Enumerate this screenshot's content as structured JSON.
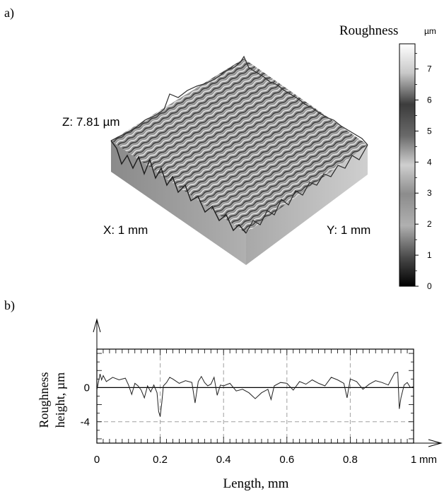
{
  "panel_a": {
    "label": "a)",
    "colorbar_title": "Roughness",
    "colorbar_unit": "µm",
    "colorbar_ticks": [
      "0",
      "1",
      "2",
      "3",
      "4",
      "5",
      "6",
      "7"
    ],
    "colorbar_range": [
      0,
      7.81
    ],
    "z_label": "Z: 7.81 µm",
    "x_label": "X: 1 mm",
    "y_label": "Y: 1 mm"
  },
  "panel_b": {
    "label": "b)",
    "xlabel": "Length, mm",
    "ylabel_line1": "Roughness",
    "ylabel_line2": "height, µm",
    "x_unit": "mm"
  },
  "chart_data": [
    {
      "type": "heatmap",
      "title": "",
      "description_values": "3D surface topography, height scale 0 to 7.81 µm over 1 mm × 1 mm",
      "xlabel": "X: 1 mm",
      "ylabel": "Y: 1 mm",
      "zlabel": "Z: 7.81 µm",
      "zlim": [
        0,
        7.81
      ],
      "colorbar_ticks": [
        0,
        1,
        2,
        3,
        4,
        5,
        6,
        7
      ]
    },
    {
      "type": "line",
      "title": "",
      "xlabel": "Length, mm",
      "ylabel": "Roughness height, µm",
      "xlim": [
        0,
        1
      ],
      "ylim": [
        -6.5,
        4.5
      ],
      "x_ticks": [
        "0",
        "0.2",
        "0.4",
        "0.6",
        "0.8",
        "1"
      ],
      "y_ticks": [
        "0",
        "-4"
      ],
      "grid": true,
      "series": [
        {
          "x": [
            0,
            0.01,
            0.015,
            0.02,
            0.03,
            0.05,
            0.07,
            0.09,
            0.1,
            0.11,
            0.12,
            0.13,
            0.14,
            0.15,
            0.16,
            0.17,
            0.18,
            0.19,
            0.195,
            0.2,
            0.205,
            0.21,
            0.22,
            0.23,
            0.24,
            0.26,
            0.28,
            0.3,
            0.31,
            0.32,
            0.33,
            0.34,
            0.35,
            0.36,
            0.37,
            0.38,
            0.39,
            0.4,
            0.42,
            0.44,
            0.46,
            0.48,
            0.5,
            0.52,
            0.54,
            0.55,
            0.56,
            0.58,
            0.6,
            0.62,
            0.64,
            0.66,
            0.68,
            0.7,
            0.72,
            0.74,
            0.76,
            0.78,
            0.79,
            0.8,
            0.82,
            0.84,
            0.86,
            0.88,
            0.9,
            0.92,
            0.94,
            0.95,
            0.955,
            0.96,
            0.97,
            0.98,
            0.99,
            1
          ],
          "y": [
            -0.3,
            1.6,
            0.9,
            1.4,
            0.7,
            1.2,
            0.9,
            1.1,
            0.3,
            -0.8,
            0.5,
            0.2,
            -0.3,
            -1.2,
            0.2,
            -0.5,
            0.3,
            -0.6,
            -2.8,
            -3.4,
            -1.8,
            0.2,
            0.6,
            1.2,
            1.0,
            0.5,
            0.8,
            0.6,
            -1.8,
            0.7,
            1.3,
            0.6,
            0.2,
            0.4,
            1.2,
            -0.9,
            0.3,
            0.2,
            0.5,
            -0.4,
            -0.2,
            -0.6,
            -1.3,
            -0.6,
            -0.2,
            -1.4,
            0.2,
            0.6,
            0.5,
            -0.3,
            0.7,
            0.4,
            0.9,
            0.5,
            0.2,
            1.2,
            0.9,
            0.5,
            -1.2,
            1.0,
            0.7,
            -0.2,
            0.4,
            0.8,
            0.6,
            0.3,
            1.7,
            1.8,
            -2.5,
            -1.2,
            0.3,
            0.6,
            0.0,
            0.1
          ]
        }
      ]
    }
  ]
}
